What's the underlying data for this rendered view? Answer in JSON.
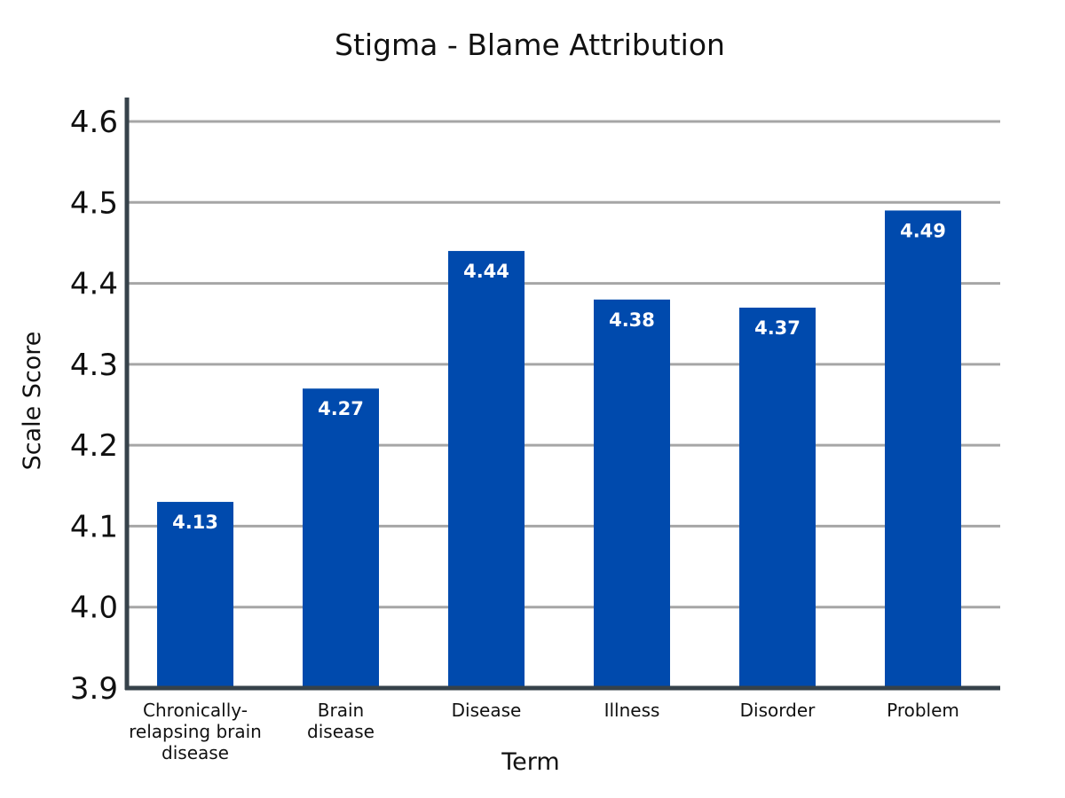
{
  "chart_data": {
    "type": "bar",
    "title": "Stigma - Blame Attribution",
    "xlabel": "Term",
    "ylabel": "Scale Score",
    "categories": [
      [
        "Chronically-",
        "relapsing brain",
        "disease"
      ],
      [
        "Brain",
        "disease"
      ],
      [
        "Disease"
      ],
      [
        "Illness"
      ],
      [
        "Disorder"
      ],
      [
        "Problem"
      ]
    ],
    "values": [
      4.13,
      4.27,
      4.44,
      4.38,
      4.37,
      4.49
    ],
    "data_labels": [
      "4.13",
      "4.27",
      "4.44",
      "4.38",
      "4.37",
      "4.49"
    ],
    "ylim": [
      3.9,
      4.6
    ],
    "yticks": [
      "3.9",
      "4.0",
      "4.1",
      "4.2",
      "4.3",
      "4.4",
      "4.5",
      "4.6"
    ],
    "grid": true,
    "legend": "none",
    "bar_color": "#004AAD",
    "grid_color": "#A6A6A6",
    "axis_color": "#36424A"
  }
}
